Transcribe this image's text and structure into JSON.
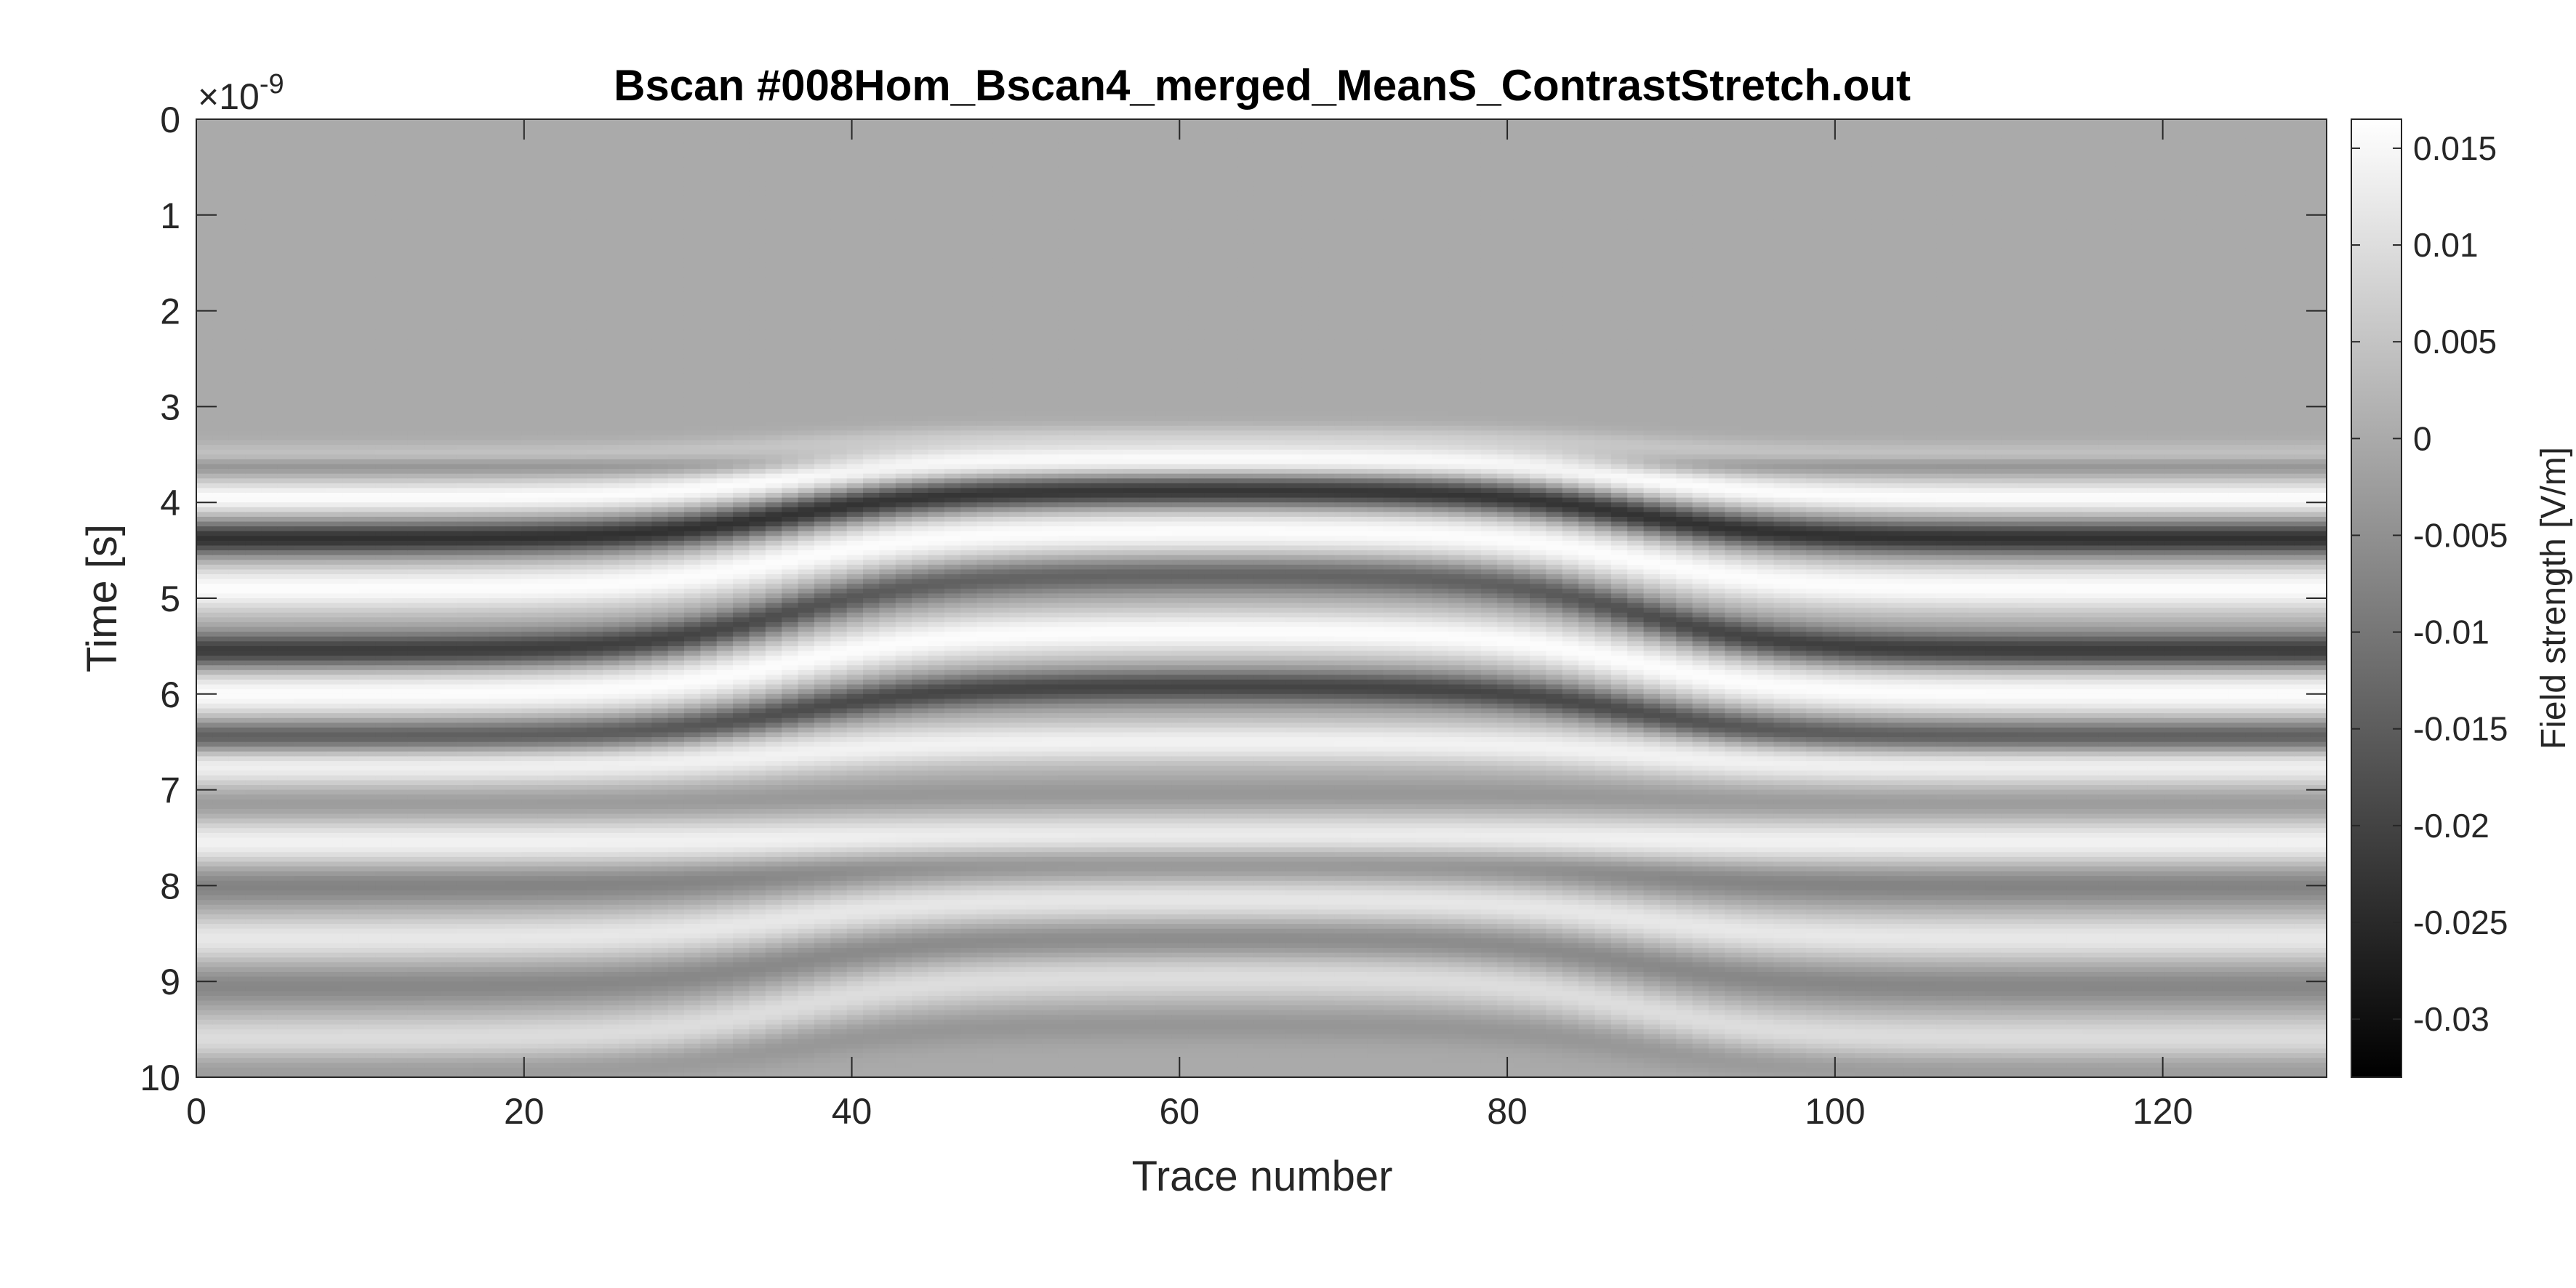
{
  "chart_data": {
    "type": "heatmap",
    "title": "Bscan #008Hom_Bscan4_merged_MeanS_ContrastStretch.out",
    "xlabel": "Trace number",
    "ylabel": "Time [s]",
    "y_exponent_base": "×10",
    "y_exponent_power": "-9",
    "xlim": [
      0,
      130
    ],
    "ylim": [
      0,
      10
    ],
    "y_direction": "reversed",
    "x_ticks": [
      0,
      20,
      40,
      60,
      80,
      100,
      120
    ],
    "x_tick_labels": [
      "0",
      "20",
      "40",
      "60",
      "80",
      "100",
      "120"
    ],
    "y_ticks": [
      0,
      1,
      2,
      3,
      4,
      5,
      6,
      7,
      8,
      9,
      10
    ],
    "y_tick_labels": [
      "0",
      "1",
      "2",
      "3",
      "4",
      "5",
      "6",
      "7",
      "8",
      "9",
      "10"
    ],
    "colormap": "gray",
    "colorbar": {
      "label": "Field strength [V/m]",
      "clim": [
        -0.033,
        0.0165
      ],
      "ticks": [
        0.015,
        0.01,
        0.005,
        0,
        -0.005,
        -0.01,
        -0.015,
        -0.02,
        -0.025,
        -0.03
      ],
      "tick_labels": [
        "0.015",
        "0.01",
        "0.005",
        "0",
        "-0.005",
        "-0.01",
        "-0.015",
        "-0.02",
        "-0.025",
        "-0.03"
      ]
    },
    "background_value": 0.0,
    "bands": [
      {
        "polarity": "positive",
        "center_edge": 3.5,
        "center_mid": 3.3,
        "amplitude": 0.005,
        "thickness": 0.12
      },
      {
        "polarity": "negative",
        "center_edge": 3.62,
        "center_mid": 3.62,
        "amplitude": -0.006,
        "thickness": 0.09,
        "mid_amplitude": 0.0
      },
      {
        "polarity": "positive",
        "center_edge": 3.95,
        "center_mid": 3.55,
        "amplitude": 0.016,
        "thickness": 0.18
      },
      {
        "polarity": "negative",
        "center_edge": 4.38,
        "center_mid": 3.88,
        "amplitude": -0.024,
        "thickness": 0.17
      },
      {
        "polarity": "positive",
        "center_edge": 4.9,
        "center_mid": 4.3,
        "amplitude": 0.016,
        "thickness": 0.25
      },
      {
        "polarity": "negative",
        "center_edge": 5.55,
        "center_mid": 4.75,
        "amplitude": -0.022,
        "thickness": 0.18,
        "mid_amplitude": -0.014
      },
      {
        "polarity": "positive",
        "center_edge": 6.0,
        "center_mid": 5.35,
        "amplitude": 0.016,
        "thickness": 0.25
      },
      {
        "polarity": "negative",
        "center_edge": 6.45,
        "center_mid": 5.92,
        "amplitude": -0.017,
        "thickness": 0.17,
        "mid_amplitude": -0.02
      },
      {
        "polarity": "positive",
        "center_edge": 6.75,
        "center_mid": 6.5,
        "amplitude": 0.014,
        "thickness": 0.22
      },
      {
        "polarity": "negative",
        "center_edge": 7.15,
        "center_mid": 7.05,
        "amplitude": -0.004,
        "thickness": 0.16
      },
      {
        "polarity": "positive",
        "center_edge": 7.55,
        "center_mid": 7.5,
        "amplitude": 0.014,
        "thickness": 0.24
      },
      {
        "polarity": "negative",
        "center_edge": 8.0,
        "center_mid": 7.75,
        "amplitude": -0.008,
        "thickness": 0.2
      },
      {
        "polarity": "positive",
        "center_edge": 8.55,
        "center_mid": 8.15,
        "amplitude": 0.012,
        "thickness": 0.24
      },
      {
        "polarity": "negative",
        "center_edge": 9.05,
        "center_mid": 8.55,
        "amplitude": -0.007,
        "thickness": 0.2
      },
      {
        "polarity": "positive",
        "center_edge": 9.6,
        "center_mid": 8.95,
        "amplitude": 0.01,
        "thickness": 0.24
      },
      {
        "polarity": "negative",
        "center_edge": 9.9,
        "center_mid": 9.45,
        "amplitude": -0.004,
        "thickness": 0.18
      }
    ],
    "band_shape": {
      "flat_edge_width": 8,
      "transition_center_left": 36,
      "transition_center_right": 88,
      "apex_trace": 63
    }
  }
}
